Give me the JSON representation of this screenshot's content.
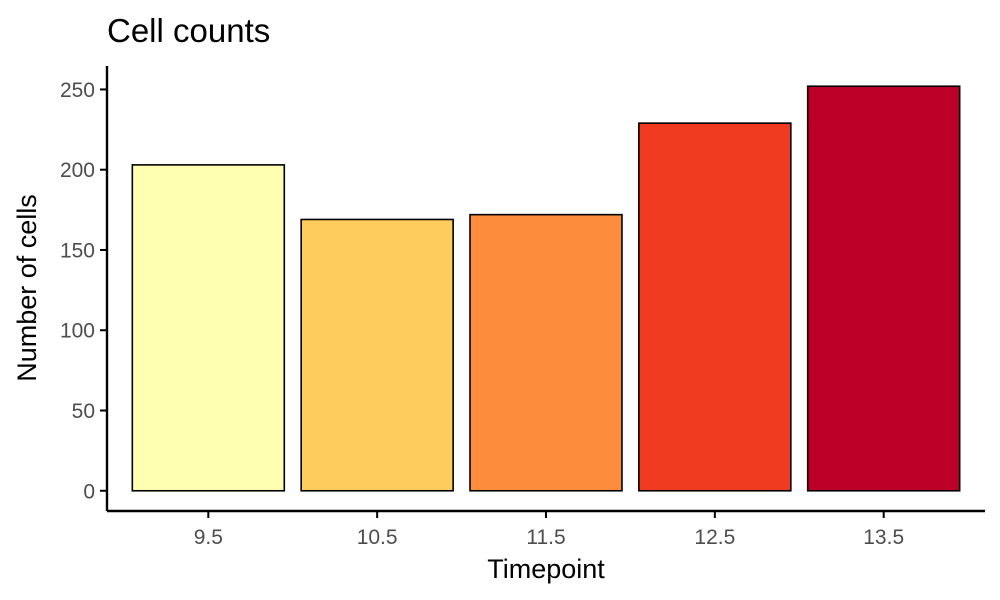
{
  "chart_data": {
    "type": "bar",
    "title": "Cell counts",
    "xlabel": "Timepoint",
    "ylabel": "Number of cells",
    "categories": [
      "9.5",
      "10.5",
      "11.5",
      "12.5",
      "13.5"
    ],
    "values": [
      203,
      169,
      172,
      229,
      252
    ],
    "colors": [
      "#FFFFB2",
      "#FECC5C",
      "#FD8D3C",
      "#F03B20",
      "#BD0026"
    ],
    "yticks": [
      0,
      50,
      100,
      150,
      200,
      250
    ],
    "ylim": [
      -12.6,
      264.6
    ],
    "grid": false,
    "legend": "none"
  }
}
